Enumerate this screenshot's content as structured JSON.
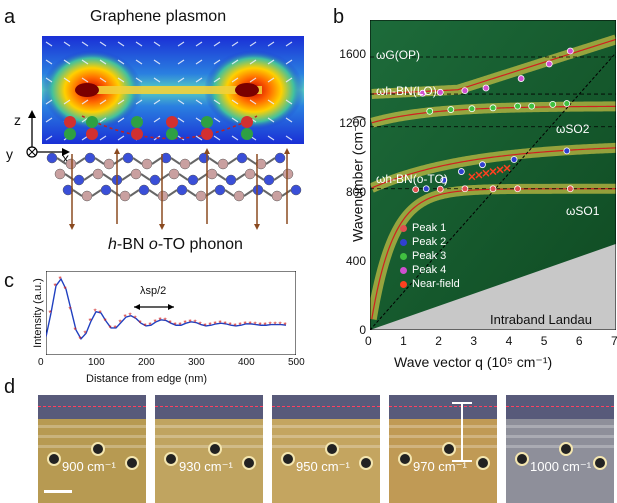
{
  "panel_labels": {
    "a": "a",
    "b": "b",
    "c": "c",
    "d": "d"
  },
  "panel_a": {
    "title": "Graphene plasmon",
    "phonon_label_italic": "h",
    "phonon_label_rest": "-BN ",
    "phonon_label_o": "o",
    "phonon_label_tail": "-TO phonon",
    "axes": {
      "z": "z",
      "y": "y",
      "x": "x"
    },
    "colors": {
      "field_high": "#d00000",
      "field_mid": "#ffd000",
      "field_low": "#1a2fd6",
      "plus": "#2ea043",
      "minus": "#d23030",
      "atom_b": "#c9a0a0",
      "atom_n": "#3a4fd8"
    }
  },
  "panel_b": {
    "ylabel": "Wavenumber (cm⁻¹)",
    "xlabel": "Wave vector q (10⁵ cm⁻¹)",
    "region_label": "Intraband Landau",
    "line_labels": {
      "g_op": "ωG(OP)",
      "hbn_lo": "ωh-BN(LO)",
      "so2": "ωSO2",
      "hbn_oto": "ωh-BN(o-TO)",
      "so1": "ωSO1"
    },
    "legend": [
      "Peak 1",
      "Peak 2",
      "Peak 3",
      "Peak 4",
      "Near-field"
    ]
  },
  "panel_c": {
    "ylabel": "Intensity (a.u.)",
    "xlabel": "Distance from edge (nm)",
    "annotation": "λsp/2"
  },
  "panel_d": {
    "frequencies": [
      "900 cm⁻¹",
      "930 cm⁻¹",
      "950 cm⁻¹",
      "970 cm⁻¹",
      "1000 cm⁻¹"
    ]
  },
  "chart_data": [
    {
      "type": "scatter",
      "panel": "b",
      "xlabel": "Wave vector q (10⁵ cm⁻¹)",
      "ylabel": "Wavenumber (cm⁻¹)",
      "xlim": [
        0,
        7
      ],
      "ylim": [
        0,
        1800
      ],
      "xticks": [
        0,
        1,
        2,
        3,
        4,
        5,
        6,
        7
      ],
      "yticks": [
        0,
        400,
        800,
        1200,
        1600
      ],
      "hlines": [
        1585,
        1370,
        1180,
        820
      ],
      "series": [
        {
          "name": "Peak 1",
          "color": "#e05050",
          "x": [
            1.3,
            2.0,
            2.7,
            3.5,
            4.2,
            5.7
          ],
          "y": [
            815,
            818,
            820,
            820,
            820,
            820
          ]
        },
        {
          "name": "Peak 2",
          "color": "#3040d0",
          "x": [
            1.6,
            2.1,
            2.6,
            3.2,
            4.1,
            5.6
          ],
          "y": [
            820,
            870,
            920,
            960,
            990,
            1040
          ]
        },
        {
          "name": "Peak 3",
          "color": "#40c040",
          "x": [
            1.7,
            2.3,
            2.9,
            3.5,
            4.2,
            4.6,
            5.2,
            5.6
          ],
          "y": [
            1270,
            1280,
            1285,
            1290,
            1300,
            1300,
            1310,
            1315
          ]
        },
        {
          "name": "Peak 4",
          "color": "#d050d0",
          "x": [
            1.5,
            2.0,
            2.7,
            3.3,
            4.3,
            5.1,
            5.7
          ],
          "y": [
            1375,
            1380,
            1390,
            1405,
            1460,
            1545,
            1620
          ]
        },
        {
          "name": "Near-field",
          "color": "#ff4020",
          "x": [
            2.9,
            3.1,
            3.3,
            3.5,
            3.7,
            3.9
          ],
          "y": [
            890,
            900,
            910,
            920,
            930,
            940
          ]
        }
      ]
    },
    {
      "type": "line",
      "panel": "c",
      "xlabel": "Distance from edge (nm)",
      "ylabel": "Intensity (a.u.)",
      "xlim": [
        0,
        500
      ],
      "xticks": [
        0,
        100,
        200,
        300,
        400,
        500
      ],
      "x": [
        0,
        10,
        20,
        30,
        40,
        50,
        60,
        70,
        80,
        90,
        100,
        110,
        120,
        130,
        140,
        150,
        160,
        170,
        180,
        190,
        200,
        210,
        220,
        230,
        240,
        250,
        260,
        270,
        280,
        290,
        300,
        310,
        320,
        330,
        340,
        350,
        360,
        370,
        380,
        390,
        400,
        410,
        420,
        430,
        440,
        450,
        460,
        470,
        480
      ],
      "y": [
        0.15,
        0.5,
        0.9,
        1.0,
        0.85,
        0.55,
        0.25,
        0.12,
        0.2,
        0.38,
        0.52,
        0.5,
        0.38,
        0.28,
        0.28,
        0.36,
        0.44,
        0.46,
        0.42,
        0.35,
        0.31,
        0.32,
        0.37,
        0.4,
        0.39,
        0.35,
        0.32,
        0.32,
        0.35,
        0.37,
        0.36,
        0.33,
        0.31,
        0.32,
        0.34,
        0.35,
        0.34,
        0.32,
        0.31,
        0.32,
        0.34,
        0.34,
        0.33,
        0.32,
        0.32,
        0.33,
        0.33,
        0.33,
        0.32
      ]
    }
  ]
}
